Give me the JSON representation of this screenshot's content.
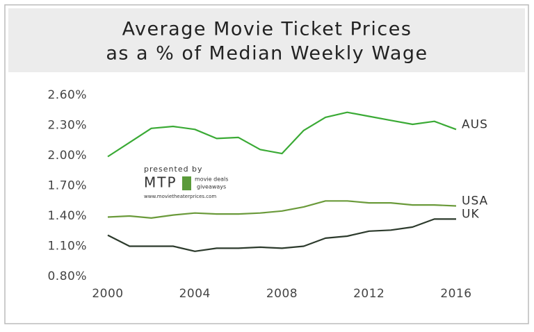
{
  "chart_data": {
    "type": "line",
    "title": [
      "Average Movie Ticket Prices",
      "as a % of Median Weekly Wage"
    ],
    "annotations": [
      "presented by",
      "MTP",
      "movie deals",
      "giveaways",
      "www.movietheaterprices.com"
    ],
    "x": [
      2000,
      2001,
      2002,
      2003,
      2004,
      2005,
      2006,
      2007,
      2008,
      2009,
      2010,
      2011,
      2012,
      2013,
      2014,
      2015,
      2016
    ],
    "xlim": [
      2000,
      2016
    ],
    "xticks": [
      2000,
      2004,
      2008,
      2012,
      2016
    ],
    "ylim": [
      0.8,
      2.6
    ],
    "yticks": [
      {
        "value": 0.8,
        "label": "0.80%"
      },
      {
        "value": 1.1,
        "label": "1.10%"
      },
      {
        "value": 1.4,
        "label": "1.40%"
      },
      {
        "value": 1.7,
        "label": "1.70%"
      },
      {
        "value": 2.0,
        "label": "2.00%"
      },
      {
        "value": 2.3,
        "label": "2.30%"
      },
      {
        "value": 2.6,
        "label": "2.60%"
      }
    ],
    "grid": false,
    "series": [
      {
        "name": "AUS",
        "color": "#3aaa35",
        "values": [
          1.99,
          2.13,
          2.27,
          2.29,
          2.26,
          2.17,
          2.18,
          2.06,
          2.02,
          2.25,
          2.38,
          2.43,
          2.39,
          2.35,
          2.31,
          2.34,
          2.26
        ]
      },
      {
        "name": "USA",
        "color": "#6a9a3a",
        "values": [
          1.39,
          1.4,
          1.38,
          1.41,
          1.43,
          1.42,
          1.42,
          1.43,
          1.45,
          1.49,
          1.55,
          1.55,
          1.53,
          1.53,
          1.51,
          1.51,
          1.5
        ]
      },
      {
        "name": "UK",
        "color": "#2c3a2c",
        "values": [
          1.21,
          1.1,
          1.1,
          1.1,
          1.05,
          1.08,
          1.08,
          1.09,
          1.08,
          1.1,
          1.18,
          1.2,
          1.25,
          1.26,
          1.29,
          1.37,
          1.37
        ]
      }
    ]
  }
}
